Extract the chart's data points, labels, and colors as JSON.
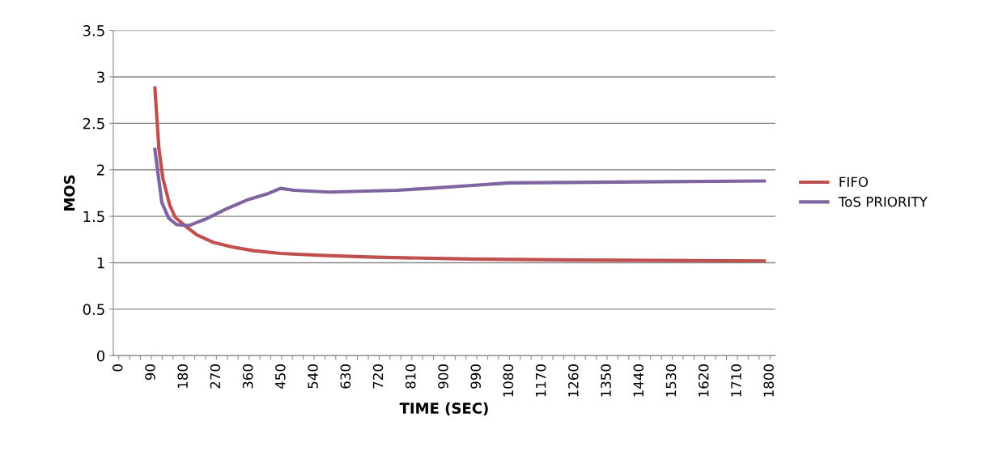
{
  "chart_data": {
    "type": "line",
    "xlabel": "TIME (SEC)",
    "ylabel": "MOS",
    "xlim": [
      -15,
      1815
    ],
    "ylim": [
      0,
      3.5
    ],
    "xticks": [
      0,
      {
        "value": 30,
        "label": null
      },
      {
        "value": 60,
        "label": null
      },
      90,
      {
        "value": 120,
        "label": null
      },
      {
        "value": 150,
        "label": null
      },
      180,
      {
        "value": 210,
        "label": null
      },
      {
        "value": 240,
        "label": null
      },
      270,
      {
        "value": 300,
        "label": null
      },
      {
        "value": 330,
        "label": null
      },
      360,
      {
        "value": 390,
        "label": null
      },
      {
        "value": 420,
        "label": null
      },
      450,
      {
        "value": 480,
        "label": null
      },
      {
        "value": 510,
        "label": null
      },
      540,
      {
        "value": 570,
        "label": null
      },
      {
        "value": 600,
        "label": null
      },
      630,
      {
        "value": 660,
        "label": null
      },
      {
        "value": 690,
        "label": null
      },
      720,
      {
        "value": 750,
        "label": null
      },
      {
        "value": 780,
        "label": null
      },
      810,
      {
        "value": 840,
        "label": null
      },
      {
        "value": 870,
        "label": null
      },
      900,
      {
        "value": 930,
        "label": null
      },
      {
        "value": 960,
        "label": null
      },
      990,
      {
        "value": 1020,
        "label": null
      },
      {
        "value": 1050,
        "label": null
      },
      1080,
      {
        "value": 1110,
        "label": null
      },
      {
        "value": 1140,
        "label": null
      },
      1170,
      {
        "value": 1200,
        "label": null
      },
      {
        "value": 1230,
        "label": null
      },
      1260,
      {
        "value": 1290,
        "label": null
      },
      {
        "value": 1320,
        "label": null
      },
      1350,
      {
        "value": 1380,
        "label": null
      },
      {
        "value": 1410,
        "label": null
      },
      1440,
      {
        "value": 1470,
        "label": null
      },
      {
        "value": 1500,
        "label": null
      },
      1530,
      {
        "value": 1560,
        "label": null
      },
      {
        "value": 1590,
        "label": null
      },
      1620,
      {
        "value": 1650,
        "label": null
      },
      {
        "value": 1680,
        "label": null
      },
      1710,
      {
        "value": 1740,
        "label": null
      },
      {
        "value": 1770,
        "label": null
      },
      1800
    ],
    "yticks": [
      0,
      0.5,
      1,
      1.5,
      2,
      2.5,
      3,
      3.5
    ],
    "grid": "y",
    "legend": "right",
    "marker": "none",
    "line_style": "solid",
    "series": [
      {
        "name": "FIFO",
        "color": "#c0504d",
        "x": [
          100,
          111,
          122,
          141,
          156,
          186,
          216,
          261,
          313,
          373,
          447,
          559,
          708,
          969,
          1260,
          1784
        ],
        "values": [
          2.88,
          2.23,
          1.91,
          1.62,
          1.49,
          1.39,
          1.3,
          1.22,
          1.17,
          1.13,
          1.1,
          1.08,
          1.06,
          1.04,
          1.03,
          1.02
        ]
      },
      {
        "name": "ToS PRIORITY",
        "color": "#8064a2",
        "x": [
          100,
          119,
          138,
          160,
          194,
          246,
          298,
          358,
          410,
          447,
          485,
          582,
          768,
          858,
          969,
          1080,
          1440,
          1784
        ],
        "values": [
          2.22,
          1.65,
          1.48,
          1.41,
          1.4,
          1.48,
          1.58,
          1.68,
          1.74,
          1.8,
          1.78,
          1.76,
          1.78,
          1.8,
          1.83,
          1.86,
          1.87,
          1.88
        ]
      }
    ]
  }
}
